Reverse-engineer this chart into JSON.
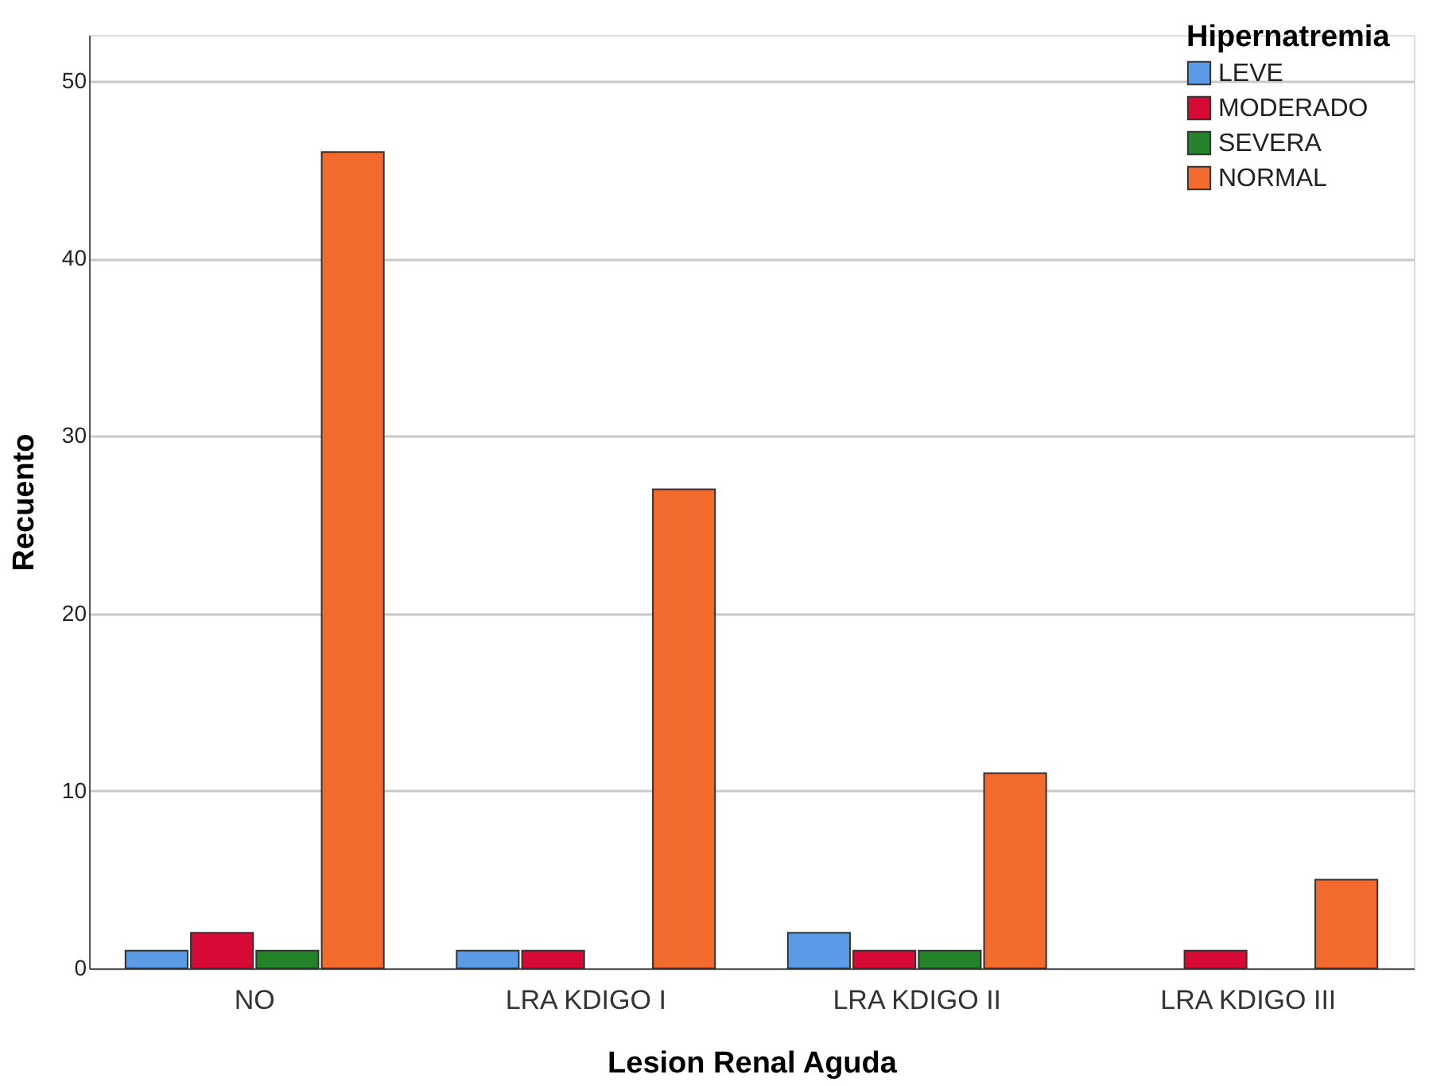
{
  "chart_data": {
    "type": "bar",
    "xlabel": "Lesion Renal Aguda",
    "ylabel": "Recuento",
    "legend_title": "Hipernatremia",
    "categories": [
      "NO",
      "LRA KDIGO I",
      "LRA KDIGO II",
      "LRA KDIGO III"
    ],
    "series": [
      {
        "name": "LEVE",
        "color": "#5b9be6",
        "values": [
          1,
          1,
          2,
          null
        ]
      },
      {
        "name": "MODERADO",
        "color": "#d70a36",
        "values": [
          2,
          1,
          1,
          1
        ]
      },
      {
        "name": "SEVERA",
        "color": "#24822a",
        "values": [
          1,
          null,
          1,
          null
        ]
      },
      {
        "name": "NORMAL",
        "color": "#f26a2c",
        "values": [
          46,
          27,
          11,
          5
        ]
      }
    ],
    "ylim": [
      0,
      52.6
    ],
    "yticks": [
      0,
      10,
      20,
      30,
      40,
      50
    ],
    "grid": "y",
    "legend": "top right"
  }
}
